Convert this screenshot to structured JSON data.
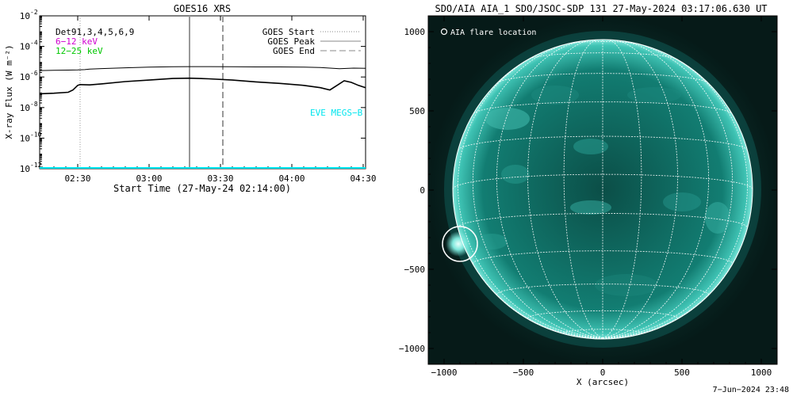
{
  "chart_data": [
    {
      "type": "line",
      "title": "GOES16 XRS",
      "xlabel": "Start Time (27-May-24 02:14:00)",
      "ylabel": "X-ray Flux (W m⁻²)",
      "yscale": "log",
      "ylim_exponent": [
        -12,
        -2
      ],
      "xlim_minutes_after_0214": [
        0,
        137
      ],
      "x_ticks": [
        "02:30",
        "03:00",
        "03:30",
        "04:00",
        "04:30"
      ],
      "y_ticks": [
        "10",
        "10",
        "10",
        "10",
        "10",
        "10"
      ],
      "y_tick_exponents": [
        "-12",
        "-10",
        "-8",
        "-6",
        "-4",
        "-2"
      ],
      "legend_left": [
        {
          "label": "Det91,3,4,5,6,9",
          "color": "#000000"
        },
        {
          "label": "6−12 keV",
          "color": "#d000d0"
        },
        {
          "label": "12−25 keV",
          "color": "#00c800"
        }
      ],
      "legend_right": [
        {
          "label": "GOES Start",
          "style": "dotted",
          "color": "#888888"
        },
        {
          "label": "GOES Peak",
          "style": "solid",
          "color": "#888888"
        },
        {
          "label": "GOES End",
          "style": "dashed",
          "color": "#888888"
        }
      ],
      "annotation": "EVE MEGS−B",
      "annotation_color": "#00e5ee",
      "event_lines": [
        {
          "name": "GOES Start",
          "time": "02:31",
          "style": "dotted"
        },
        {
          "name": "GOES Peak",
          "time": "03:17",
          "style": "solid"
        },
        {
          "name": "GOES End",
          "time": "03:31",
          "style": "dashed"
        }
      ],
      "series": [
        {
          "name": "",
          "color": "#000000",
          "x": [
            "02:14",
            "02:20",
            "02:26",
            "02:30",
            "02:33",
            "02:35",
            "02:40",
            "02:50",
            "03:00",
            "03:10",
            "03:17",
            "03:25",
            "03:35",
            "03:45",
            "03:55",
            "04:05",
            "04:12",
            "04:16",
            "04:20",
            "04:23",
            "04:26",
            "04:31"
          ],
          "log_flux": [
            -5.58,
            -5.56,
            -5.55,
            -5.54,
            -5.52,
            -5.48,
            -5.45,
            -5.4,
            -5.36,
            -5.33,
            -5.32,
            -5.32,
            -5.33,
            -5.34,
            -5.34,
            -5.36,
            -5.38,
            -5.42,
            -5.46,
            -5.44,
            -5.42,
            -5.43
          ]
        },
        {
          "name": "",
          "color": "#000000",
          "x": [
            "02:14",
            "02:20",
            "02:26",
            "02:28",
            "02:30",
            "02:31",
            "02:35",
            "02:40",
            "02:50",
            "03:00",
            "03:10",
            "03:17",
            "03:25",
            "03:35",
            "03:45",
            "03:55",
            "04:05",
            "04:12",
            "04:16",
            "04:19",
            "04:22",
            "04:25",
            "04:28",
            "04:31"
          ],
          "log_flux": [
            -7.1,
            -7.06,
            -7.0,
            -6.85,
            -6.55,
            -6.5,
            -6.52,
            -6.45,
            -6.3,
            -6.2,
            -6.1,
            -6.08,
            -6.12,
            -6.2,
            -6.32,
            -6.42,
            -6.55,
            -6.7,
            -6.85,
            -6.55,
            -6.25,
            -6.35,
            -6.55,
            -6.7
          ]
        },
        {
          "name": "",
          "color": "#00e5ee",
          "x": [
            "02:14",
            "04:31"
          ],
          "log_flux": [
            -11.95,
            -11.95
          ]
        }
      ]
    },
    {
      "type": "image",
      "title": "SDO/AIA AIA_1 SDO/JSOC-SDP 131 27-May-2024 03:17:06.630 UT",
      "xlabel": "X (arcsec)",
      "ylabel": "",
      "xlim": [
        -1100,
        1100
      ],
      "ylim": [
        -1100,
        1100
      ],
      "x_ticks": [
        -1000,
        -500,
        0,
        500,
        1000
      ],
      "y_ticks": [
        -1000,
        -500,
        0,
        500,
        1000
      ],
      "x_tick_labels": [
        "−1000",
        "−500",
        "0",
        "500",
        "1000"
      ],
      "y_tick_labels": [
        "−1000",
        "−500",
        "0",
        "500",
        "1000"
      ],
      "legend": "AIA flare location",
      "solar_radius_arcsec": 946,
      "flare_location_arcsec": {
        "x": -900,
        "y": -340
      },
      "colors": {
        "disk": "#0f6e64",
        "corona": "#0b3a35",
        "grid": "#ffffff"
      }
    }
  ],
  "footer_timestamp": "7−Jun−2024 23:48"
}
